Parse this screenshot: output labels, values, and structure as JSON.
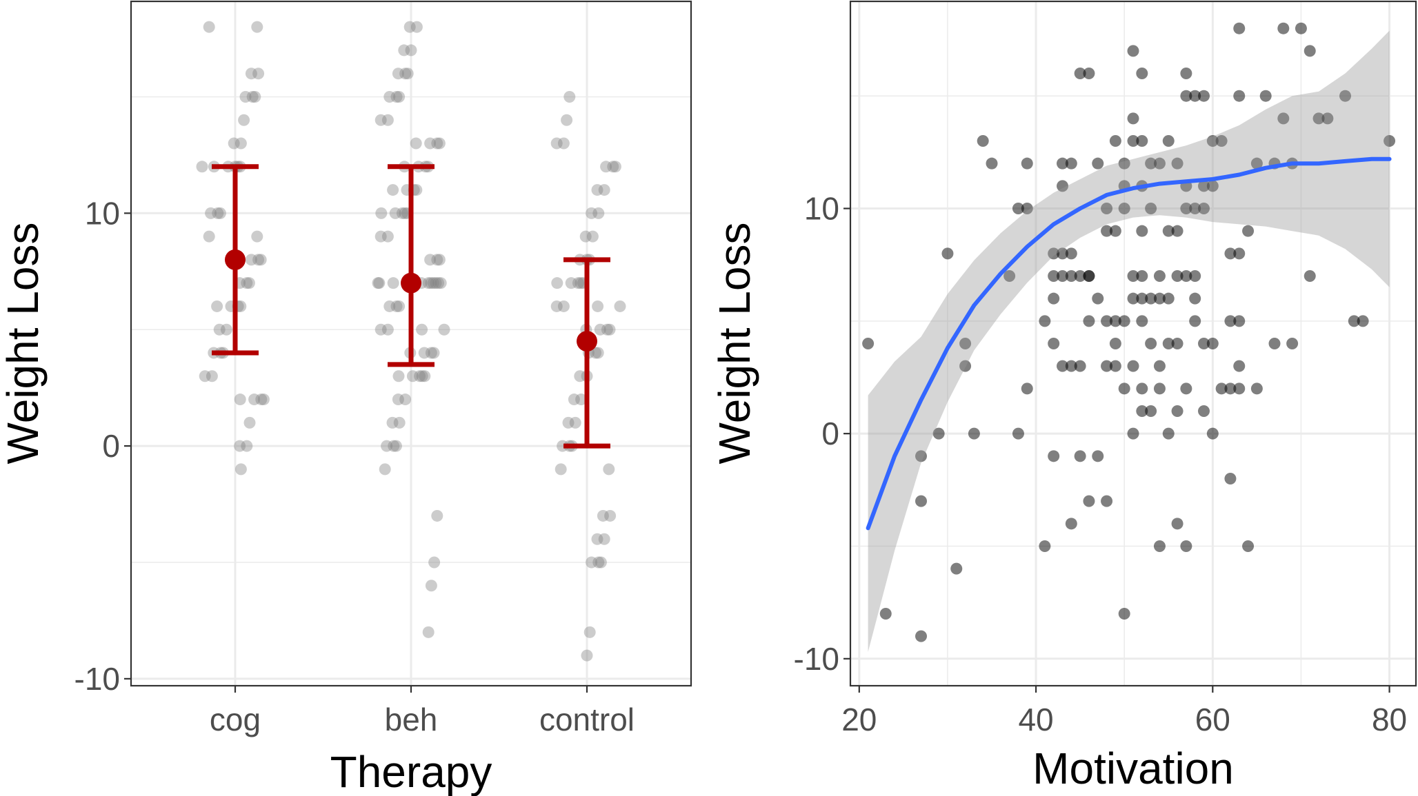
{
  "chart_data": [
    {
      "type": "scatter",
      "xlabel": "Therapy",
      "ylabel": "Weight Loss",
      "categories": [
        "cog",
        "beh",
        "control"
      ],
      "y_ticks": [
        "-10",
        "0",
        "10"
      ],
      "ylim": [
        -10.3,
        19.1
      ],
      "grid": true,
      "colors": {
        "points": "#808080",
        "summary": "#B20000",
        "panel_border": "#333333",
        "grid": "#EBEBEB"
      },
      "series": [
        {
          "category": "cog",
          "values": [
            18,
            18,
            16,
            16,
            15,
            15,
            15,
            14,
            13,
            13,
            12,
            12,
            12,
            12,
            12,
            12,
            10,
            10,
            10,
            9,
            9,
            8,
            8,
            8,
            8,
            7,
            7,
            7,
            6,
            6,
            6,
            6,
            5,
            5,
            4,
            4,
            4,
            3,
            3,
            2,
            2,
            2,
            2,
            1,
            0,
            0,
            -1
          ]
        },
        {
          "category": "beh",
          "values": [
            18,
            18,
            17,
            17,
            16,
            16,
            16,
            15,
            15,
            15,
            14,
            14,
            13,
            13,
            13,
            13,
            12,
            12,
            12,
            12,
            11,
            11,
            11,
            11,
            10,
            10,
            10,
            10,
            10,
            9,
            9,
            8,
            8,
            8,
            7,
            7,
            7,
            7,
            7,
            7,
            7,
            7,
            7,
            7,
            7,
            6,
            6,
            6,
            5,
            5,
            5,
            5,
            4,
            4,
            4,
            4,
            3,
            3,
            3,
            3,
            3,
            2,
            2,
            1,
            1,
            0,
            0,
            0,
            -1,
            -3,
            -5,
            -6,
            -8
          ]
        },
        {
          "category": "control",
          "values": [
            15,
            14,
            13,
            13,
            12,
            12,
            12,
            11,
            11,
            10,
            10,
            9,
            9,
            8,
            8,
            8,
            7,
            7,
            7,
            7,
            7,
            6,
            6,
            6,
            6,
            5,
            5,
            5,
            5,
            4,
            4,
            4,
            3,
            3,
            2,
            2,
            1,
            1,
            0,
            0,
            0,
            -1,
            -1,
            -3,
            -3,
            -4,
            -4,
            -5,
            -5,
            -5,
            -8,
            -9
          ]
        }
      ],
      "summary": [
        {
          "category": "cog",
          "mean": 8.0,
          "lower": 4.0,
          "upper": 12.0
        },
        {
          "category": "beh",
          "mean": 7.0,
          "lower": 3.5,
          "upper": 12.0
        },
        {
          "category": "control",
          "mean": 4.5,
          "lower": 0.0,
          "upper": 8.0
        }
      ]
    },
    {
      "type": "scatter",
      "xlabel": "Motivation",
      "ylabel": "Weight Loss",
      "x_ticks": [
        "20",
        "40",
        "60",
        "80"
      ],
      "y_ticks": [
        "-10",
        "0",
        "10"
      ],
      "xlim": [
        19.0,
        83.0
      ],
      "ylim": [
        -11.2,
        19.2
      ],
      "grid": true,
      "colors": {
        "points": "#000000",
        "smooth_line": "#3366FF",
        "ribbon": "#999999",
        "panel_border": "#333333",
        "grid": "#EBEBEB"
      },
      "points": [
        [
          21,
          4
        ],
        [
          23,
          -8
        ],
        [
          27,
          -1
        ],
        [
          27,
          -3
        ],
        [
          27,
          -9
        ],
        [
          29,
          0
        ],
        [
          30,
          8
        ],
        [
          31,
          -6
        ],
        [
          32,
          4
        ],
        [
          32,
          3
        ],
        [
          33,
          0
        ],
        [
          34,
          13
        ],
        [
          35,
          12
        ],
        [
          37,
          7
        ],
        [
          38,
          10
        ],
        [
          38,
          0
        ],
        [
          39,
          10
        ],
        [
          39,
          12
        ],
        [
          39,
          2
        ],
        [
          41,
          5
        ],
        [
          41,
          -5
        ],
        [
          42,
          8
        ],
        [
          42,
          7
        ],
        [
          42,
          6
        ],
        [
          42,
          4
        ],
        [
          42,
          -1
        ],
        [
          43,
          12
        ],
        [
          43,
          11
        ],
        [
          43,
          8
        ],
        [
          43,
          7
        ],
        [
          43,
          3
        ],
        [
          44,
          12
        ],
        [
          44,
          8
        ],
        [
          44,
          7
        ],
        [
          44,
          3
        ],
        [
          44,
          -4
        ],
        [
          45,
          16
        ],
        [
          45,
          7
        ],
        [
          45,
          3
        ],
        [
          45,
          -1
        ],
        [
          46,
          16
        ],
        [
          46,
          7
        ],
        [
          46,
          7
        ],
        [
          46,
          5
        ],
        [
          46,
          -3
        ],
        [
          47,
          12
        ],
        [
          47,
          6
        ],
        [
          47,
          -1
        ],
        [
          48,
          10
        ],
        [
          48,
          9
        ],
        [
          48,
          5
        ],
        [
          48,
          3
        ],
        [
          48,
          -3
        ],
        [
          49,
          13
        ],
        [
          49,
          9
        ],
        [
          49,
          5
        ],
        [
          49,
          4
        ],
        [
          49,
          3
        ],
        [
          50,
          12
        ],
        [
          50,
          11
        ],
        [
          50,
          10
        ],
        [
          50,
          5
        ],
        [
          50,
          2
        ],
        [
          50,
          -8
        ],
        [
          51,
          17
        ],
        [
          51,
          14
        ],
        [
          51,
          13
        ],
        [
          51,
          7
        ],
        [
          51,
          6
        ],
        [
          51,
          3
        ],
        [
          51,
          0
        ],
        [
          52,
          16
        ],
        [
          52,
          13
        ],
        [
          52,
          11
        ],
        [
          52,
          9
        ],
        [
          52,
          7
        ],
        [
          52,
          6
        ],
        [
          52,
          5
        ],
        [
          52,
          2
        ],
        [
          52,
          1
        ],
        [
          53,
          12
        ],
        [
          53,
          10
        ],
        [
          53,
          6
        ],
        [
          53,
          4
        ],
        [
          53,
          1
        ],
        [
          54,
          12
        ],
        [
          54,
          7
        ],
        [
          54,
          6
        ],
        [
          54,
          3
        ],
        [
          54,
          2
        ],
        [
          54,
          -5
        ],
        [
          55,
          13
        ],
        [
          55,
          9
        ],
        [
          55,
          6
        ],
        [
          55,
          4
        ],
        [
          55,
          0
        ],
        [
          56,
          12
        ],
        [
          56,
          9
        ],
        [
          56,
          7
        ],
        [
          56,
          4
        ],
        [
          56,
          1
        ],
        [
          56,
          -4
        ],
        [
          57,
          16
        ],
        [
          57,
          15
        ],
        [
          57,
          10
        ],
        [
          57,
          11
        ],
        [
          57,
          7
        ],
        [
          57,
          2
        ],
        [
          57,
          -5
        ],
        [
          58,
          15
        ],
        [
          58,
          10
        ],
        [
          58,
          7
        ],
        [
          58,
          6
        ],
        [
          58,
          5
        ],
        [
          59,
          15
        ],
        [
          59,
          11
        ],
        [
          59,
          10
        ],
        [
          59,
          4
        ],
        [
          59,
          1
        ],
        [
          60,
          13
        ],
        [
          60,
          11
        ],
        [
          60,
          4
        ],
        [
          60,
          0
        ],
        [
          61,
          13
        ],
        [
          61,
          2
        ],
        [
          62,
          8
        ],
        [
          62,
          5
        ],
        [
          62,
          2
        ],
        [
          62,
          -2
        ],
        [
          63,
          18
        ],
        [
          63,
          15
        ],
        [
          63,
          8
        ],
        [
          63,
          5
        ],
        [
          63,
          3
        ],
        [
          63,
          2
        ],
        [
          64,
          9
        ],
        [
          64,
          -5
        ],
        [
          65,
          12
        ],
        [
          65,
          2
        ],
        [
          66,
          15
        ],
        [
          67,
          12
        ],
        [
          67,
          4
        ],
        [
          68,
          18
        ],
        [
          68,
          14
        ],
        [
          69,
          12
        ],
        [
          69,
          4
        ],
        [
          70,
          18
        ],
        [
          71,
          17
        ],
        [
          71,
          7
        ],
        [
          72,
          14
        ],
        [
          73,
          14
        ],
        [
          75,
          15
        ],
        [
          76,
          5
        ],
        [
          77,
          5
        ],
        [
          80,
          13
        ]
      ],
      "smooth": {
        "x": [
          21,
          24,
          27,
          30,
          33,
          36,
          39,
          42,
          45,
          48,
          51,
          54,
          57,
          60,
          63,
          66,
          69,
          72,
          75,
          78,
          80
        ],
        "y": [
          -4.2,
          -1.0,
          1.5,
          3.8,
          5.7,
          7.1,
          8.3,
          9.3,
          10.0,
          10.6,
          10.9,
          11.1,
          11.2,
          11.3,
          11.5,
          11.8,
          12.0,
          12.0,
          12.1,
          12.2,
          12.2
        ],
        "lower": [
          -9.7,
          -5.2,
          -1.3,
          1.4,
          3.7,
          5.3,
          6.7,
          7.9,
          8.7,
          9.3,
          9.6,
          9.7,
          9.6,
          9.4,
          9.3,
          9.2,
          9.0,
          8.8,
          8.2,
          7.3,
          6.5
        ],
        "upper": [
          1.7,
          3.2,
          4.3,
          6.2,
          7.7,
          8.9,
          9.9,
          10.7,
          11.3,
          11.9,
          12.2,
          12.5,
          12.8,
          13.2,
          13.7,
          14.4,
          15.0,
          15.2,
          16.0,
          17.1,
          17.9
        ]
      }
    }
  ]
}
